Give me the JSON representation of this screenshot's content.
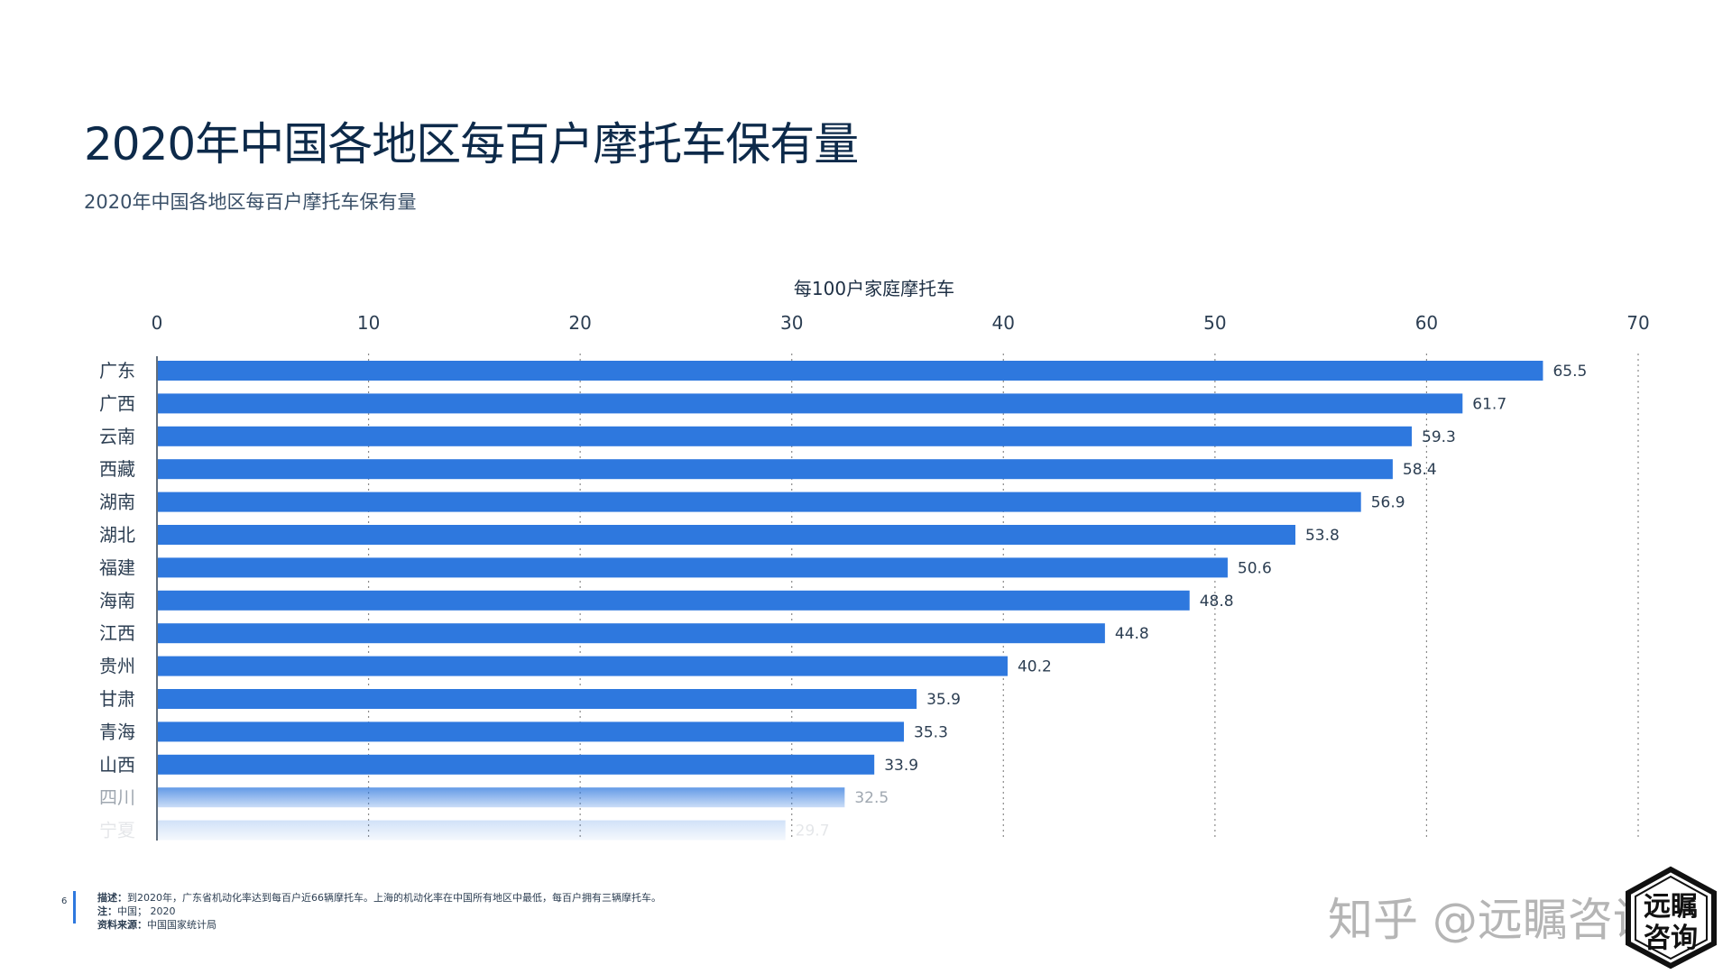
{
  "header": {
    "title": "2020年中国各地区每百户摩托车保有量",
    "subtitle": "2020年中国各地区每百户摩托车保有量"
  },
  "chart_data": {
    "type": "bar",
    "orientation": "horizontal",
    "xlabel": "每100户家庭摩托车",
    "xlim": [
      0,
      70
    ],
    "xticks": [
      0,
      10,
      20,
      30,
      40,
      50,
      60,
      70
    ],
    "grid": "vertical dotted",
    "categories": [
      "广东",
      "广西",
      "云南",
      "西藏",
      "湖南",
      "湖北",
      "福建",
      "海南",
      "江西",
      "贵州",
      "甘肃",
      "青海",
      "山西",
      "四川",
      "宁夏"
    ],
    "values": [
      65.5,
      61.7,
      59.3,
      58.4,
      56.9,
      53.8,
      50.6,
      48.8,
      44.8,
      40.2,
      35.9,
      35.3,
      33.9,
      32.5,
      29.7
    ],
    "bar_color": "#2e78de"
  },
  "footer": {
    "page_number": "6",
    "description_label": "描述：",
    "description": "到2020年，广东省机动化率达到每百户近66辆摩托车。上海的机动化率在中国所有地区中最低，每百户拥有三辆摩托车。",
    "note_label": "注：",
    "note": "中国； 2020",
    "source_label": "资料来源：",
    "source": "中国国家统计局"
  },
  "watermark": {
    "text": "知乎 @远瞩咨询",
    "seal_text": "远瞩咨询"
  }
}
